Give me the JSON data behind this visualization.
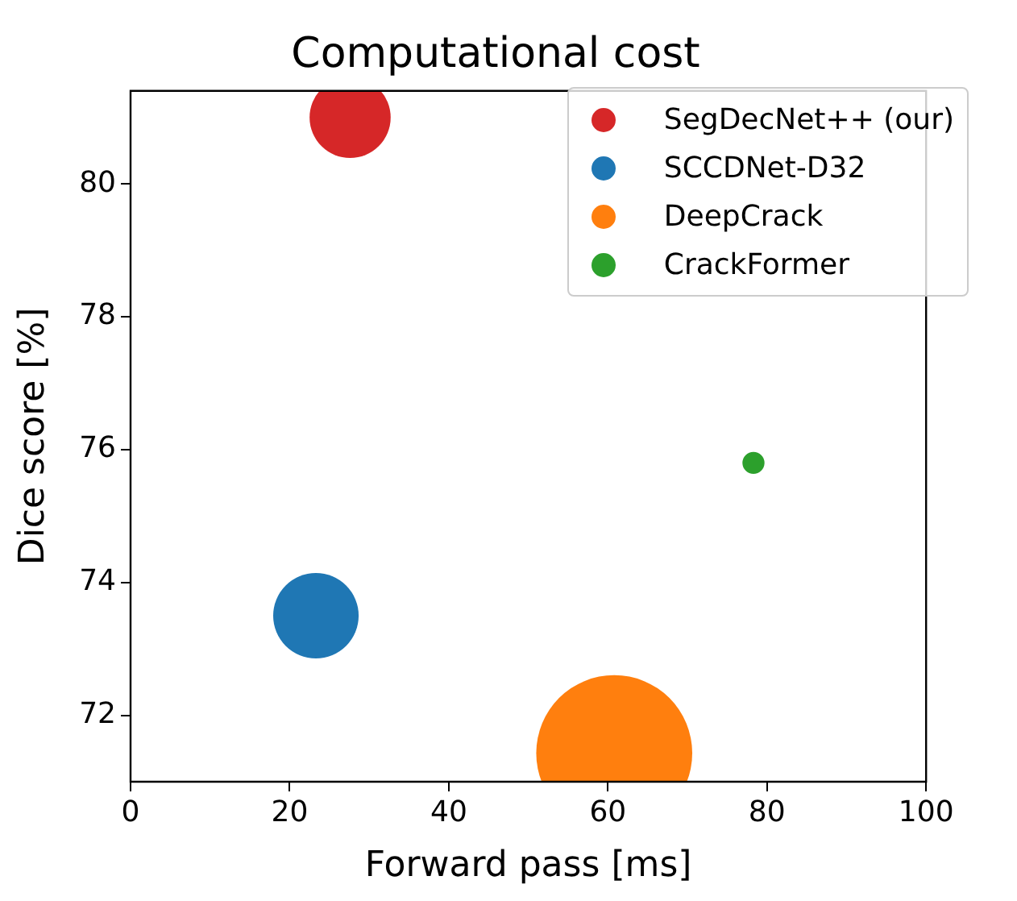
{
  "chart_data": {
    "type": "bubble",
    "title": "Computational cost",
    "xlabel": "Forward pass [ms]",
    "ylabel": "Dice score [%]",
    "xlim": [
      0,
      100
    ],
    "xticks": [
      0,
      20,
      40,
      60,
      80,
      100
    ],
    "ylim": [
      71,
      81.4
    ],
    "yticks": [
      72,
      74,
      76,
      78,
      80
    ],
    "grid": false,
    "legend": "top right",
    "marker": "circle",
    "series": [
      {
        "name": "SegDecNet++ (our)",
        "color": "#d62728",
        "x": [
          27.6
        ],
        "values": [
          81.0
        ],
        "sizes": [
          0.27
        ]
      },
      {
        "name": "SCCDNet-D32",
        "color": "#1f77b4",
        "x": [
          23.3
        ],
        "values": [
          73.5
        ],
        "sizes": [
          0.3
        ]
      },
      {
        "name": "DeepCrack",
        "color": "#ff7f0e",
        "x": [
          60.8
        ],
        "values": [
          71.43
        ],
        "sizes": [
          1
        ]
      },
      {
        "name": "CrackFormer",
        "color": "#2ca02c",
        "x": [
          78.3
        ],
        "values": [
          75.8
        ],
        "sizes": [
          0.02
        ]
      }
    ]
  }
}
